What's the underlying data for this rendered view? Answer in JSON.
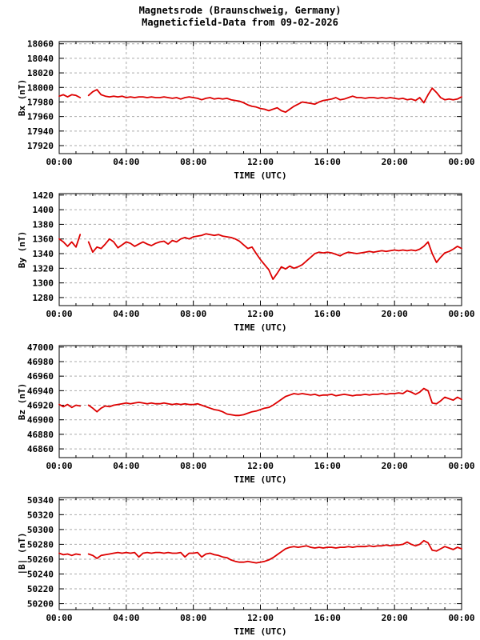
{
  "header": {
    "title_line1": "Magnetsrode (Braunschweig, Germany)",
    "title_line2": "Magneticfield-Data from 09-02-2026"
  },
  "colors": {
    "line": "#dd0000",
    "grid": "#aaaaaa",
    "axis": "#000000",
    "background": "#ffffff",
    "text": "#000000"
  },
  "time_axis": {
    "label": "TIME (UTC)",
    "range_hours": [
      0,
      24
    ],
    "major_tick_hours": [
      0,
      4,
      8,
      12,
      16,
      20,
      24
    ],
    "tick_labels": [
      "00:00",
      "04:00",
      "08:00",
      "12:00",
      "16:00",
      "20:00",
      "00:00"
    ],
    "minor_tick_every_hours": 1,
    "data_gap_hours": [
      1.25,
      1.75
    ]
  },
  "chart_data": [
    {
      "type": "line",
      "id": "bx",
      "ylabel": "Bx (nT)",
      "yticks": [
        17920,
        17940,
        17960,
        17980,
        18000,
        18020,
        18040,
        18060
      ],
      "ylim": [
        17909,
        18063
      ],
      "grid": true,
      "xlabel": "TIME (UTC)",
      "x_start_hours": 0,
      "x_step_hours": 0.25,
      "values": [
        17988,
        17990,
        17987,
        17990,
        17989,
        17986,
        null,
        17989,
        17994,
        17997,
        17990,
        17988,
        17987,
        17988,
        17987,
        17988,
        17986,
        17987,
        17986,
        17987,
        17987,
        17986,
        17987,
        17986,
        17986,
        17987,
        17986,
        17985,
        17986,
        17984,
        17986,
        17987,
        17986,
        17985,
        17983,
        17985,
        17986,
        17984,
        17985,
        17984,
        17985,
        17983,
        17982,
        17981,
        17979,
        17976,
        17974,
        17973,
        17971,
        17970,
        17968,
        17970,
        17972,
        17968,
        17966,
        17970,
        17974,
        17977,
        17980,
        17979,
        17978,
        17977,
        17980,
        17982,
        17983,
        17984,
        17986,
        17983,
        17984,
        17986,
        17988,
        17986,
        17986,
        17985,
        17986,
        17986,
        17985,
        17986,
        17985,
        17986,
        17985,
        17984,
        17985,
        17983,
        17984,
        17982,
        17986,
        17979,
        17990,
        17999,
        17993,
        17986,
        17983,
        17984,
        17983,
        17984,
        17987
      ]
    },
    {
      "type": "line",
      "id": "by",
      "ylabel": "By (nT)",
      "yticks": [
        1280,
        1300,
        1320,
        1340,
        1360,
        1380,
        1400,
        1420
      ],
      "ylim": [
        1269,
        1422
      ],
      "grid": true,
      "xlabel": "TIME (UTC)",
      "x_start_hours": 0,
      "x_step_hours": 0.25,
      "values": [
        1360,
        1356,
        1350,
        1356,
        1349,
        1366,
        null,
        1356,
        1342,
        1349,
        1347,
        1353,
        1360,
        1356,
        1348,
        1352,
        1356,
        1354,
        1350,
        1353,
        1356,
        1353,
        1351,
        1354,
        1356,
        1357,
        1353,
        1358,
        1356,
        1360,
        1362,
        1360,
        1363,
        1364,
        1365,
        1367,
        1366,
        1365,
        1366,
        1364,
        1363,
        1362,
        1360,
        1357,
        1352,
        1347,
        1349,
        1340,
        1332,
        1325,
        1318,
        1305,
        1313,
        1322,
        1319,
        1323,
        1320,
        1322,
        1325,
        1330,
        1335,
        1340,
        1342,
        1341,
        1342,
        1341,
        1339,
        1337,
        1340,
        1342,
        1341,
        1340,
        1341,
        1342,
        1343,
        1342,
        1343,
        1344,
        1343,
        1344,
        1345,
        1344,
        1345,
        1344,
        1345,
        1344,
        1346,
        1350,
        1356,
        1340,
        1328,
        1335,
        1341,
        1343,
        1346,
        1350,
        1347
      ]
    },
    {
      "type": "line",
      "id": "bz",
      "ylabel": "Bz (nT)",
      "yticks": [
        46860,
        46880,
        46900,
        46920,
        46940,
        46960,
        46980,
        47000
      ],
      "ylim": [
        46848,
        47002
      ],
      "grid": true,
      "xlabel": "TIME (UTC)",
      "x_start_hours": 0,
      "x_step_hours": 0.25,
      "values": [
        46921,
        46918,
        46921,
        46917,
        46920,
        46919,
        null,
        46920,
        46916,
        46911,
        46916,
        46919,
        46918,
        46920,
        46921,
        46922,
        46923,
        46922,
        46923,
        46924,
        46923,
        46922,
        46923,
        46922,
        46922,
        46923,
        46922,
        46921,
        46922,
        46921,
        46922,
        46921,
        46921,
        46922,
        46920,
        46918,
        46916,
        46914,
        46913,
        46911,
        46908,
        46907,
        46906,
        46906,
        46907,
        46909,
        46911,
        46912,
        46914,
        46916,
        46917,
        46920,
        46924,
        46928,
        46932,
        46934,
        46936,
        46935,
        46936,
        46935,
        46934,
        46935,
        46933,
        46934,
        46934,
        46935,
        46933,
        46934,
        46935,
        46934,
        46933,
        46934,
        46934,
        46935,
        46934,
        46935,
        46935,
        46936,
        46935,
        46936,
        46936,
        46937,
        46936,
        46940,
        46938,
        46935,
        46938,
        46943,
        46940,
        46923,
        46922,
        46926,
        46931,
        46929,
        46927,
        46931,
        46928
      ]
    },
    {
      "type": "line",
      "id": "btotal",
      "ylabel": "|B| (nT)",
      "yticks": [
        50200,
        50220,
        50240,
        50260,
        50280,
        50300,
        50320,
        50340
      ],
      "ylim": [
        50192,
        50343
      ],
      "grid": true,
      "xlabel": "TIME (UTC)",
      "x_start_hours": 0,
      "x_step_hours": 0.25,
      "values": [
        50268,
        50266,
        50267,
        50265,
        50267,
        50266,
        null,
        50267,
        50265,
        50261,
        50265,
        50266,
        50267,
        50268,
        50269,
        50268,
        50269,
        50268,
        50269,
        50263,
        50268,
        50269,
        50268,
        50269,
        50269,
        50268,
        50269,
        50268,
        50268,
        50269,
        50263,
        50268,
        50268,
        50269,
        50263,
        50267,
        50268,
        50266,
        50265,
        50263,
        50262,
        50259,
        50257,
        50256,
        50256,
        50257,
        50256,
        50255,
        50256,
        50257,
        50259,
        50262,
        50266,
        50270,
        50274,
        50276,
        50277,
        50276,
        50277,
        50278,
        50276,
        50275,
        50276,
        50275,
        50276,
        50276,
        50275,
        50276,
        50276,
        50277,
        50276,
        50277,
        50277,
        50277,
        50278,
        50277,
        50278,
        50278,
        50279,
        50278,
        50279,
        50279,
        50280,
        50283,
        50280,
        50278,
        50280,
        50285,
        50282,
        50272,
        50271,
        50274,
        50277,
        50275,
        50273,
        50276,
        50274
      ]
    }
  ]
}
